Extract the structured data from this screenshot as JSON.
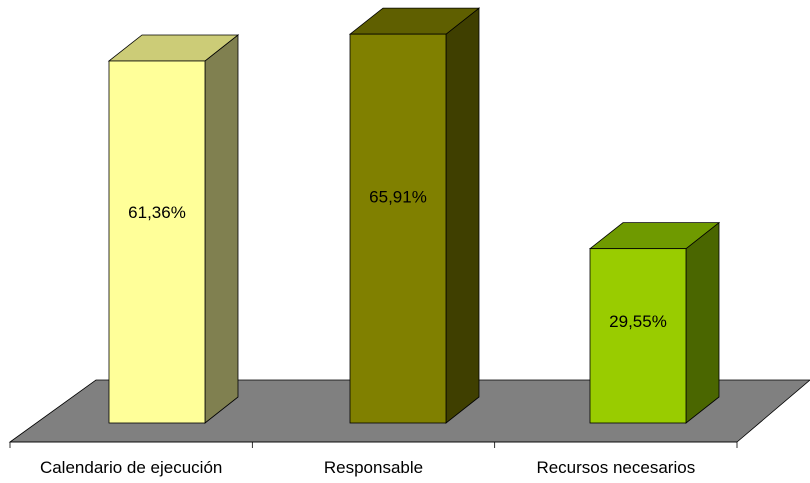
{
  "chart_data": {
    "type": "bar",
    "three_d": true,
    "categories": [
      "Calendario de ejecución",
      "Responsable",
      "Recursos necesarios"
    ],
    "values": [
      61.36,
      65.91,
      29.55
    ],
    "data_labels": [
      "61,36%",
      "65,91%",
      "29,55%"
    ],
    "value_unit": "%",
    "ylim": [
      0,
      100
    ],
    "grid": false,
    "legend": "none",
    "title": "",
    "xlabel": "",
    "ylabel": "",
    "colors": {
      "floor": "#808080",
      "bars": [
        {
          "front": "#ffff99",
          "top": "#cccc77",
          "side": "#808050"
        },
        {
          "front": "#808000",
          "top": "#5f5f00",
          "side": "#3f3f00"
        },
        {
          "front": "#99cc00",
          "top": "#6f9a00",
          "side": "#4a6600"
        }
      ]
    }
  }
}
